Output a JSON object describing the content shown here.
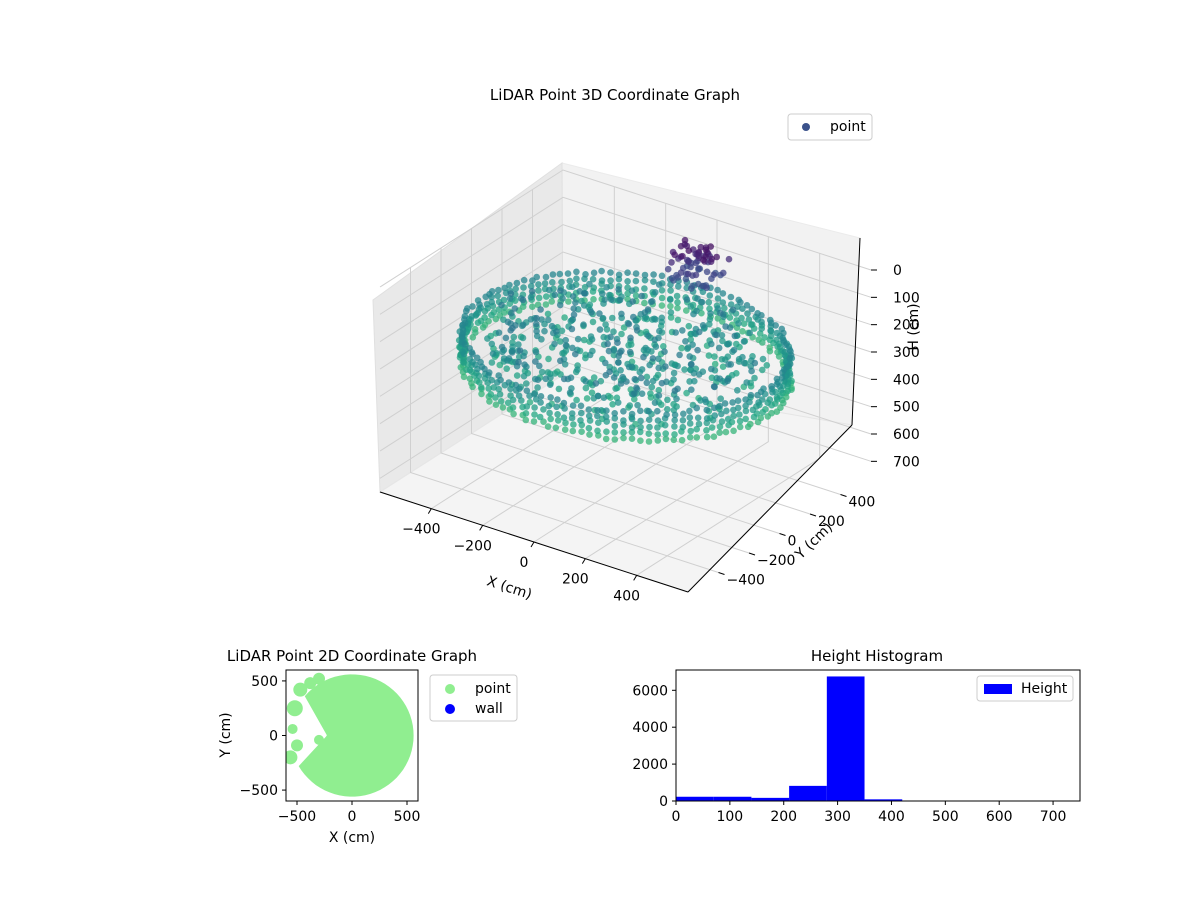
{
  "chart_data": [
    {
      "type": "scatter3d",
      "title": "LiDAR Point 3D Coordinate Graph",
      "xlabel": "X (cm)",
      "ylabel": "Y (cm)",
      "zlabel": "H (cm)",
      "xticks": [
        -400,
        -200,
        0,
        200,
        400
      ],
      "yticks": [
        -400,
        -200,
        0,
        200,
        400
      ],
      "zticks": [
        0,
        100,
        200,
        300,
        400,
        500,
        600,
        700
      ],
      "xlim": [
        -600,
        600
      ],
      "ylim": [
        -600,
        600
      ],
      "zlim": [
        750,
        0
      ],
      "z_inverted": true,
      "colormap": "viridis",
      "legend": {
        "entries": [
          {
            "name": "point",
            "color": "#3b528b"
          }
        ],
        "placement": "upper-right"
      },
      "description_points": {
        "wall_radius_cm": 560,
        "wall_height_range": [
          230,
          330
        ],
        "interior_height_range": [
          0,
          320
        ]
      }
    },
    {
      "type": "scatter",
      "title": "LiDAR Point 2D Coordinate Graph",
      "xlabel": "X (cm)",
      "ylabel": "Y (cm)",
      "xticks": [
        -500,
        0,
        500
      ],
      "yticks": [
        500,
        0,
        -500
      ],
      "xlim": [
        -600,
        600
      ],
      "ylim": [
        -600,
        600
      ],
      "series": [
        {
          "name": "point",
          "color": "#90ee90",
          "shape": "disk",
          "radius": 560,
          "gap_start_deg": 140,
          "gap_end_deg": 210
        },
        {
          "name": "wall",
          "color": "#0000ff",
          "values": []
        }
      ],
      "legend": {
        "placement": "outside-right"
      }
    },
    {
      "type": "bar",
      "title": "Height Histogram",
      "xlabel": "",
      "ylabel": "",
      "xticks": [
        0,
        100,
        200,
        300,
        400,
        500,
        600,
        700
      ],
      "yticks": [
        0,
        2000,
        4000,
        6000
      ],
      "xlim": [
        0,
        750
      ],
      "ylim": [
        0,
        7100
      ],
      "bin_edges": [
        0,
        70,
        140,
        210,
        280,
        350,
        420,
        490,
        560,
        630,
        700,
        770
      ],
      "values": [
        230,
        230,
        170,
        820,
        6750,
        90,
        8,
        4,
        3,
        2,
        2
      ],
      "series": [
        {
          "name": "Height",
          "color": "#0000ff"
        }
      ],
      "legend": {
        "placement": "upper-right"
      }
    }
  ]
}
